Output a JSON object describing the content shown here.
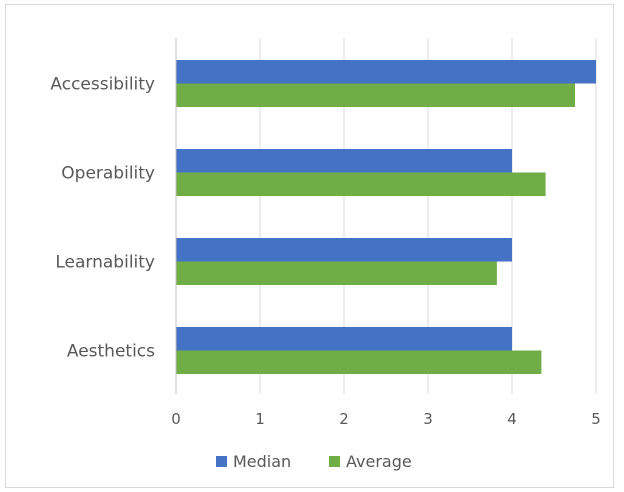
{
  "chart_data": {
    "type": "bar",
    "orientation": "horizontal",
    "categories": [
      "Accessibility",
      "Operability",
      "Learnability",
      "Aesthetics"
    ],
    "series": [
      {
        "name": "Median",
        "color": "#4472c4",
        "values": [
          5,
          4,
          4,
          4
        ]
      },
      {
        "name": "Average",
        "color": "#70ad47",
        "values": [
          4.75,
          4.4,
          3.82,
          4.35
        ]
      }
    ],
    "xlim": [
      0,
      5
    ],
    "xticks": [
      "0",
      "1",
      "2",
      "3",
      "4",
      "5"
    ],
    "grid": "vertical",
    "legend_position": "bottom"
  }
}
